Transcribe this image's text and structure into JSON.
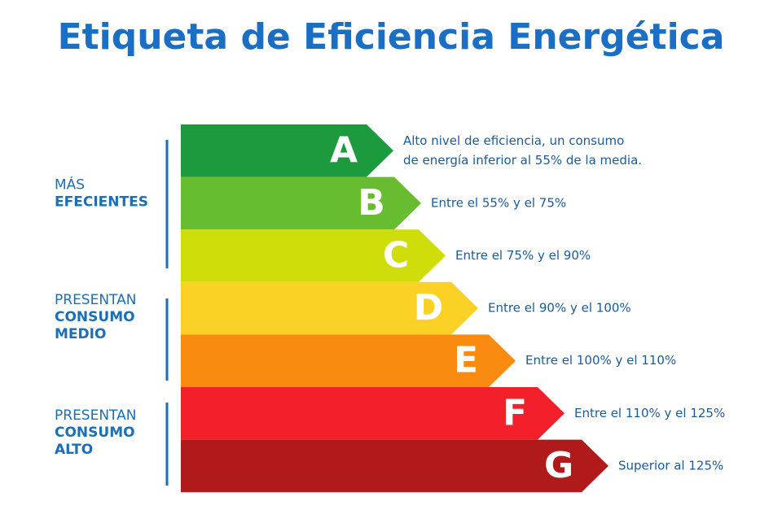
{
  "header": {
    "title": "Etiqueta de Eficiencia Energética"
  },
  "groups": [
    {
      "light": "MÁS",
      "bold": [
        "EFECIENTES"
      ]
    },
    {
      "light": "PRESENTAN",
      "bold": [
        "CONSUMO",
        "MEDIO"
      ]
    },
    {
      "light": "PRESENTAN",
      "bold": [
        "CONSUMO",
        "ALTO"
      ]
    }
  ],
  "classes": [
    {
      "letter": "A",
      "color": "#1e9a3e",
      "description": [
        "Alto nivel de eficiencia, un consumo",
        "de energía inferior al 55% de la media."
      ]
    },
    {
      "letter": "B",
      "color": "#67bd2f",
      "description": [
        "Entre el 55% y el 75%"
      ]
    },
    {
      "letter": "C",
      "color": "#cfde0b",
      "description": [
        "Entre el 75% y el 90%"
      ]
    },
    {
      "letter": "D",
      "color": "#fbd125",
      "description": [
        "Entre el 90% y el 100%"
      ]
    },
    {
      "letter": "E",
      "color": "#f88b10",
      "description": [
        "Entre el 100% y el 110%"
      ]
    },
    {
      "letter": "F",
      "color": "#f2202a",
      "description": [
        "Entre el 110% y el 125%"
      ]
    },
    {
      "letter": "G",
      "color": "#b01a1a",
      "description": [
        "Superior al 125%"
      ]
    }
  ]
}
